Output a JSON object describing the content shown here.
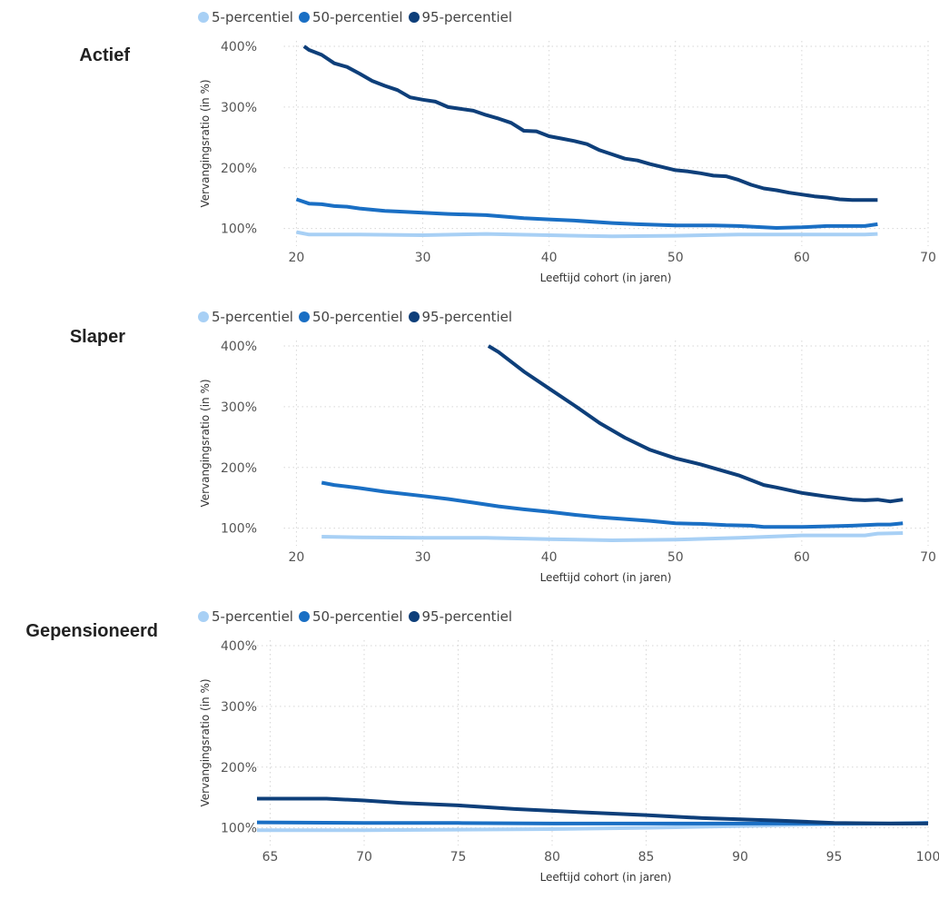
{
  "chart_data": [
    {
      "type": "line",
      "title": "Actief",
      "xlabel": "Leeftijd cohort (in jaren)",
      "ylabel": "Vervangingsratio (in %)",
      "xlim": [
        19,
        70
      ],
      "ylim": [
        80,
        400
      ],
      "xticks": [
        "20",
        "30",
        "40",
        "50",
        "60",
        "70"
      ],
      "yticks": [
        "100%",
        "200%",
        "300%",
        "400%"
      ],
      "grid": true,
      "legend_position": "top-left",
      "series": [
        {
          "name": "5-percentiel",
          "color": "#a8d0f5",
          "x": [
            20,
            21,
            25,
            30,
            35,
            40,
            45,
            50,
            55,
            60,
            65,
            66
          ],
          "y": [
            94,
            90,
            90,
            89,
            91,
            89,
            87,
            88,
            90,
            90,
            90,
            91
          ]
        },
        {
          "name": "50-percentiel",
          "color": "#1a6fc4",
          "x": [
            20,
            21,
            22,
            23,
            24,
            25,
            27,
            28,
            30,
            32,
            35,
            38,
            40,
            42,
            45,
            47,
            50,
            53,
            55,
            58,
            60,
            62,
            65,
            66
          ],
          "y": [
            148,
            141,
            140,
            137,
            136,
            133,
            129,
            128,
            126,
            124,
            122,
            117,
            115,
            113,
            109,
            107,
            105,
            105,
            104,
            101,
            102,
            104,
            104,
            107
          ]
        },
        {
          "name": "95-percentiel",
          "color": "#0e3f7a",
          "x": [
            20.6,
            21,
            22,
            23,
            24,
            25,
            26,
            27,
            28,
            29,
            30,
            31,
            32,
            33,
            34,
            35,
            36,
            37,
            38,
            39,
            40,
            41,
            42,
            43,
            44,
            45,
            46,
            47,
            48,
            49,
            50,
            51,
            52,
            53,
            54,
            55,
            56,
            57,
            58,
            59,
            60,
            61,
            62,
            63,
            64,
            65,
            66
          ],
          "y": [
            400,
            394,
            386,
            372,
            366,
            355,
            343,
            335,
            328,
            316,
            312,
            309,
            300,
            297,
            294,
            287,
            281,
            274,
            261,
            260,
            252,
            248,
            244,
            239,
            229,
            222,
            215,
            212,
            206,
            201,
            196,
            194,
            191,
            187,
            186,
            180,
            172,
            166,
            163,
            159,
            156,
            153,
            151,
            148,
            147,
            147,
            147
          ]
        }
      ]
    },
    {
      "type": "line",
      "title": "Slaper",
      "xlabel": "Leeftijd cohort (in jaren)",
      "ylabel": "Vervangingsratio (in %)",
      "xlim": [
        19,
        70
      ],
      "ylim": [
        80,
        400
      ],
      "xticks": [
        "20",
        "30",
        "40",
        "50",
        "60",
        "70"
      ],
      "yticks": [
        "100%",
        "200%",
        "300%",
        "400%"
      ],
      "grid": true,
      "legend_position": "top-left",
      "series": [
        {
          "name": "5-percentiel",
          "color": "#a8d0f5",
          "x": [
            22,
            25,
            30,
            35,
            40,
            45,
            50,
            55,
            60,
            65,
            66,
            68
          ],
          "y": [
            86,
            85,
            84,
            84,
            82,
            80,
            81,
            84,
            88,
            88,
            91,
            92
          ]
        },
        {
          "name": "50-percentiel",
          "color": "#1a6fc4",
          "x": [
            22,
            23,
            25,
            27,
            30,
            32,
            34,
            36,
            38,
            40,
            42,
            44,
            46,
            48,
            50,
            52,
            54,
            56,
            57,
            58,
            60,
            62,
            64,
            65,
            66,
            67,
            68
          ],
          "y": [
            175,
            171,
            166,
            160,
            153,
            148,
            142,
            136,
            131,
            127,
            122,
            118,
            115,
            112,
            108,
            107,
            105,
            104,
            102,
            102,
            102,
            103,
            104,
            105,
            106,
            106,
            108
          ]
        },
        {
          "name": "95-percentiel",
          "color": "#0e3f7a",
          "x": [
            35.2,
            36,
            38,
            40,
            42,
            44,
            46,
            48,
            50,
            52,
            54,
            55,
            57,
            58,
            60,
            62,
            64,
            65,
            66,
            67,
            68
          ],
          "y": [
            400,
            390,
            358,
            330,
            302,
            273,
            249,
            229,
            215,
            205,
            193,
            187,
            171,
            167,
            158,
            152,
            147,
            146,
            147,
            144,
            147
          ]
        }
      ]
    },
    {
      "type": "line",
      "title": "Gepensioneerd",
      "xlabel": "Leeftijd cohort (in jaren)",
      "ylabel": "Vervangingsratio (in %)",
      "xlim": [
        64.3,
        100
      ],
      "ylim": [
        80,
        400
      ],
      "xticks": [
        "65",
        "70",
        "75",
        "80",
        "85",
        "90",
        "95",
        "100"
      ],
      "yticks": [
        "100%",
        "200%",
        "300%",
        "400%"
      ],
      "grid": true,
      "legend_position": "top-left",
      "series": [
        {
          "name": "5-percentiel",
          "color": "#a8d0f5",
          "x": [
            64.3,
            70,
            75,
            80,
            85,
            90,
            95,
            98,
            100
          ],
          "y": [
            96,
            96,
            97,
            98,
            100,
            103,
            106,
            107,
            108
          ]
        },
        {
          "name": "50-percentiel",
          "color": "#1a6fc4",
          "x": [
            64.3,
            70,
            75,
            80,
            85,
            90,
            95,
            98,
            100
          ],
          "y": [
            109,
            108,
            108,
            107,
            107,
            107,
            107,
            107,
            108
          ]
        },
        {
          "name": "95-percentiel",
          "color": "#0e3f7a",
          "x": [
            64.3,
            66,
            68,
            70,
            72,
            75,
            78,
            80,
            82,
            85,
            88,
            90,
            92,
            95,
            98,
            100
          ],
          "y": [
            148,
            148,
            148,
            145,
            141,
            137,
            131,
            128,
            125,
            121,
            116,
            114,
            112,
            108,
            107,
            107
          ]
        }
      ]
    }
  ]
}
